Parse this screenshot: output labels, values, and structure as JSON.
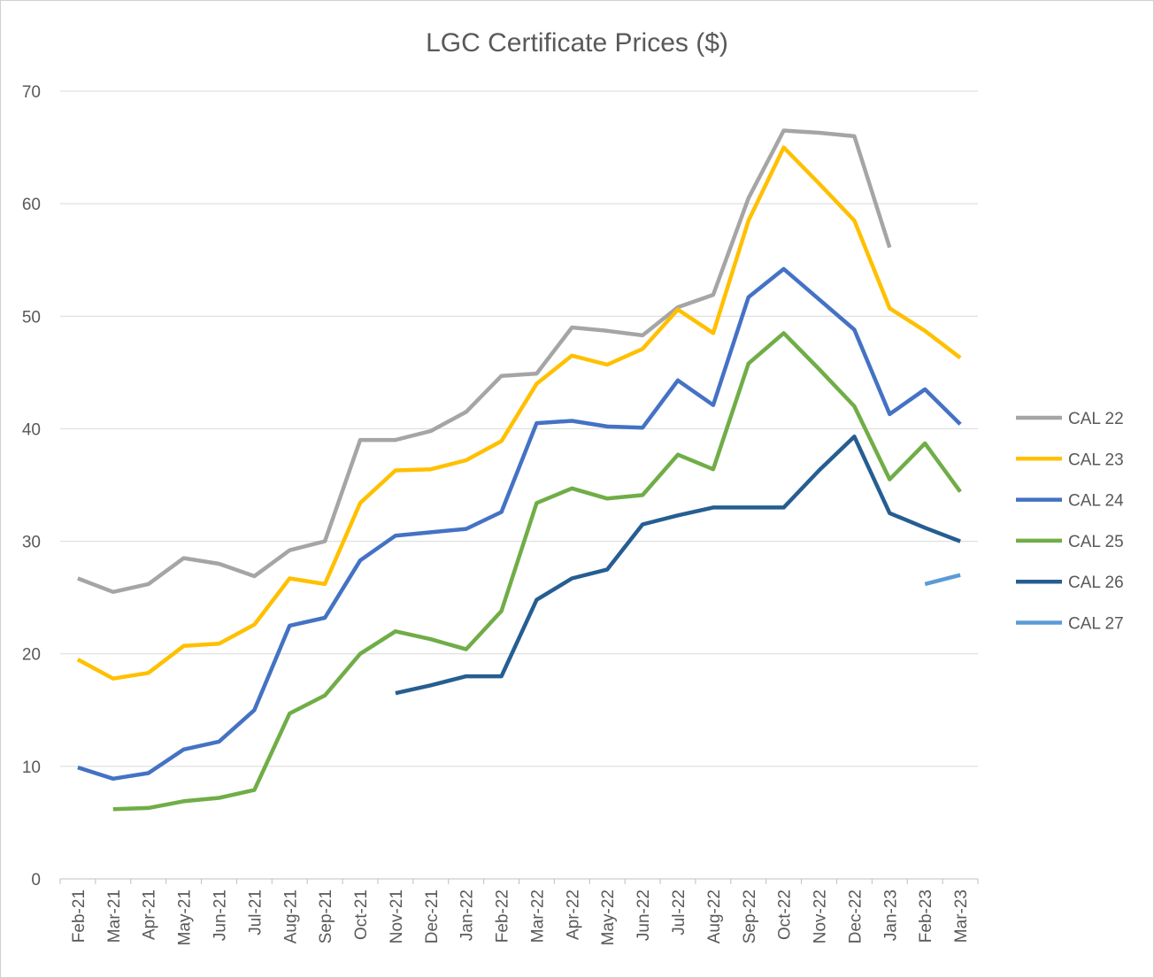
{
  "chart_data": {
    "type": "line",
    "title": "LGC Certificate Prices ($)",
    "xlabel": "",
    "ylabel": "",
    "ylim": [
      0,
      70
    ],
    "yticks": [
      0,
      10,
      20,
      30,
      40,
      50,
      60,
      70
    ],
    "grid": true,
    "legend_position": "right",
    "categories": [
      "Feb-21",
      "Mar-21",
      "Apr-21",
      "May-21",
      "Jun-21",
      "Jul-21",
      "Aug-21",
      "Sep-21",
      "Oct-21",
      "Nov-21",
      "Dec-21",
      "Jan-22",
      "Feb-22",
      "Mar-22",
      "Apr-22",
      "May-22",
      "Jun-22",
      "Jul-22",
      "Aug-22",
      "Sep-22",
      "Oct-22",
      "Nov-22",
      "Dec-22",
      "Jan-23",
      "Feb-23",
      "Mar-23"
    ],
    "series": [
      {
        "name": "CAL 22",
        "color": "#a5a5a5",
        "values": [
          26.7,
          25.5,
          26.2,
          28.5,
          28.0,
          26.9,
          29.2,
          30.0,
          39.0,
          39.0,
          39.8,
          41.5,
          44.7,
          44.9,
          49.0,
          48.7,
          48.3,
          50.8,
          51.9,
          60.5,
          66.5,
          66.3,
          66.0,
          56.1,
          null,
          null
        ]
      },
      {
        "name": "CAL 23",
        "color": "#ffc000",
        "values": [
          19.5,
          17.8,
          18.3,
          20.7,
          20.9,
          22.6,
          26.7,
          26.2,
          33.4,
          36.3,
          36.4,
          37.2,
          38.9,
          44.0,
          46.5,
          45.7,
          47.1,
          50.6,
          48.5,
          58.5,
          65.0,
          61.8,
          58.5,
          50.7,
          48.7,
          46.3
        ]
      },
      {
        "name": "CAL 24",
        "color": "#4472c4",
        "values": [
          9.9,
          8.9,
          9.4,
          11.5,
          12.2,
          15.0,
          22.5,
          23.2,
          28.3,
          30.5,
          30.8,
          31.1,
          32.6,
          40.5,
          40.7,
          40.2,
          40.1,
          44.3,
          42.1,
          51.7,
          54.2,
          51.5,
          48.8,
          41.3,
          43.5,
          40.4
        ]
      },
      {
        "name": "CAL 25",
        "color": "#70ad47",
        "values": [
          null,
          6.2,
          6.3,
          6.9,
          7.2,
          7.9,
          14.7,
          16.3,
          20.0,
          22.0,
          21.3,
          20.4,
          23.8,
          33.4,
          34.7,
          33.8,
          34.1,
          37.7,
          36.4,
          45.8,
          48.5,
          45.3,
          42.0,
          35.5,
          38.7,
          34.4
        ]
      },
      {
        "name": "CAL 26",
        "color": "#255e91",
        "values": [
          null,
          null,
          null,
          null,
          null,
          null,
          null,
          null,
          null,
          16.5,
          17.2,
          18.0,
          18.0,
          24.8,
          26.7,
          27.5,
          31.5,
          32.3,
          33.0,
          33.0,
          33.0,
          36.3,
          39.3,
          32.5,
          31.2,
          30.0
        ]
      },
      {
        "name": "CAL 27",
        "color": "#5b9bd5",
        "values": [
          null,
          null,
          null,
          null,
          null,
          null,
          null,
          null,
          null,
          null,
          null,
          null,
          null,
          null,
          null,
          null,
          null,
          null,
          null,
          null,
          null,
          null,
          null,
          null,
          26.2,
          27.0
        ]
      }
    ]
  }
}
